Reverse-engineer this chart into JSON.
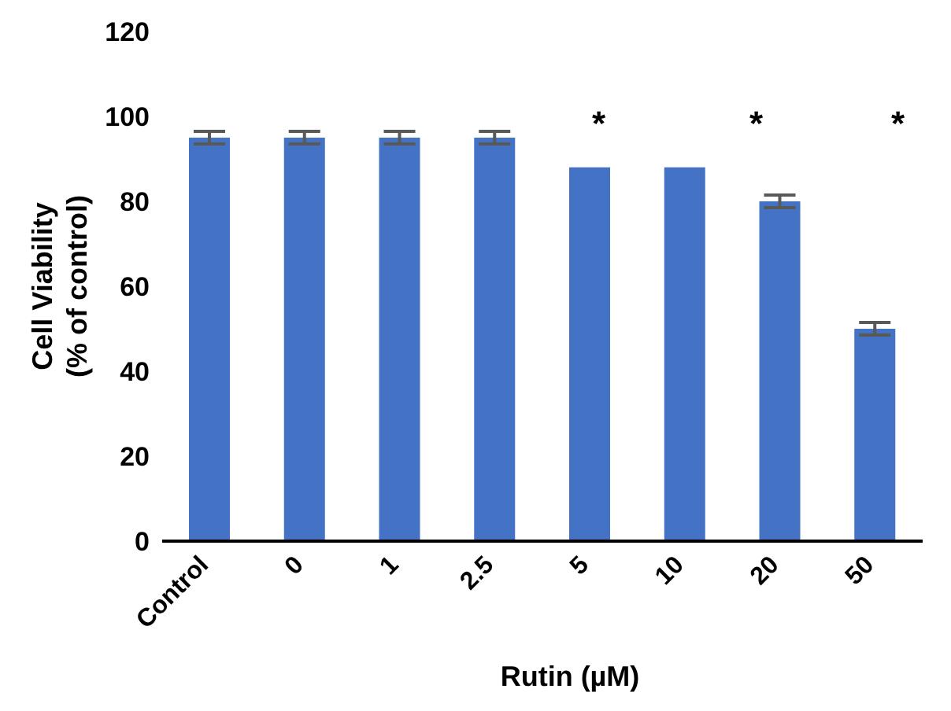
{
  "chart_data": {
    "type": "bar",
    "xlabel": "Rutin (µM)",
    "ylabel": "Cell Viability\n(% of control)",
    "categories": [
      "Control",
      "0",
      "1",
      "2.5",
      "5",
      "10",
      "20",
      "50"
    ],
    "values": [
      95,
      95,
      95,
      95,
      88,
      88,
      80,
      50
    ],
    "errors": [
      1.5,
      1.5,
      1.5,
      1.5,
      null,
      null,
      1.5,
      1.5
    ],
    "color": "#4472c4",
    "ylim": [
      0,
      120
    ],
    "yticks": [
      0,
      20,
      40,
      60,
      80,
      100,
      120
    ],
    "grid": false,
    "annotations": [
      "*",
      "*",
      "*"
    ]
  }
}
